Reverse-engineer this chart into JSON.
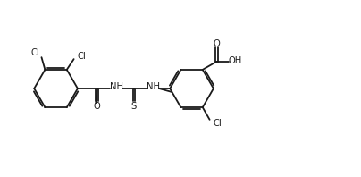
{
  "background_color": "#ffffff",
  "line_color": "#1a1a1a",
  "line_width": 1.3,
  "font_size": 7.2,
  "fig_width": 4.04,
  "fig_height": 1.98,
  "dpi": 100,
  "xlim": [
    0,
    100
  ],
  "ylim": [
    0,
    49
  ]
}
